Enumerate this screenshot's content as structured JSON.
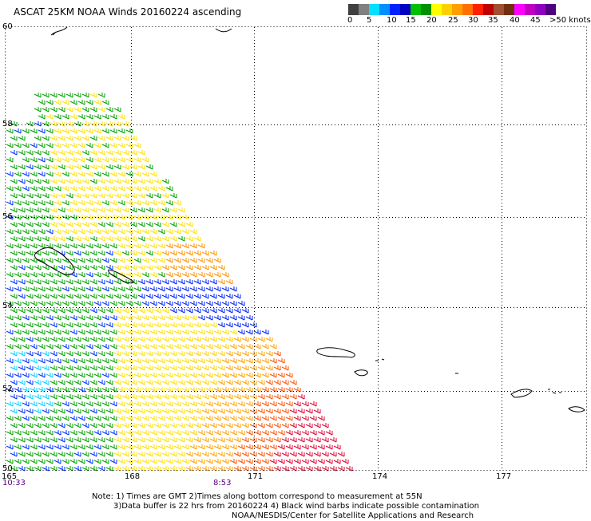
{
  "title": "ASCAT 25KM NOAA Winds 20160224 ascending",
  "colorbar": {
    "colors": [
      "#404040",
      "#808080",
      "#00e0ff",
      "#0090ff",
      "#0020ff",
      "#0000c0",
      "#00c000",
      "#009000",
      "#ffff00",
      "#ffd000",
      "#ffa000",
      "#ff7000",
      "#ff2000",
      "#c00000",
      "#a05030",
      "#703010",
      "#ff00ff",
      "#c000c0",
      "#9000c0",
      "#500080"
    ],
    "labels": [
      "0",
      "5",
      "10",
      "15",
      "20",
      "25",
      "30",
      "35",
      "40",
      "45",
      ">50 knots"
    ]
  },
  "axes": {
    "lon_ticks": [
      "165",
      "168",
      "171",
      "174",
      "177"
    ],
    "lat_ticks": [
      "60",
      "58",
      "56",
      "54",
      "52",
      "50"
    ]
  },
  "times": {
    "start": "10:33",
    "end": "8:53"
  },
  "note": {
    "line1": "Note: 1) Times are GMT 2)Times along bottom correspond to measurement at 55N",
    "line2": "3)Data buffer is 22 hrs from 20160224 4) Black wind barbs indicate possible contamination",
    "line3": "NOAA/NESDIS/Center for Satellite Applications and Research"
  }
}
